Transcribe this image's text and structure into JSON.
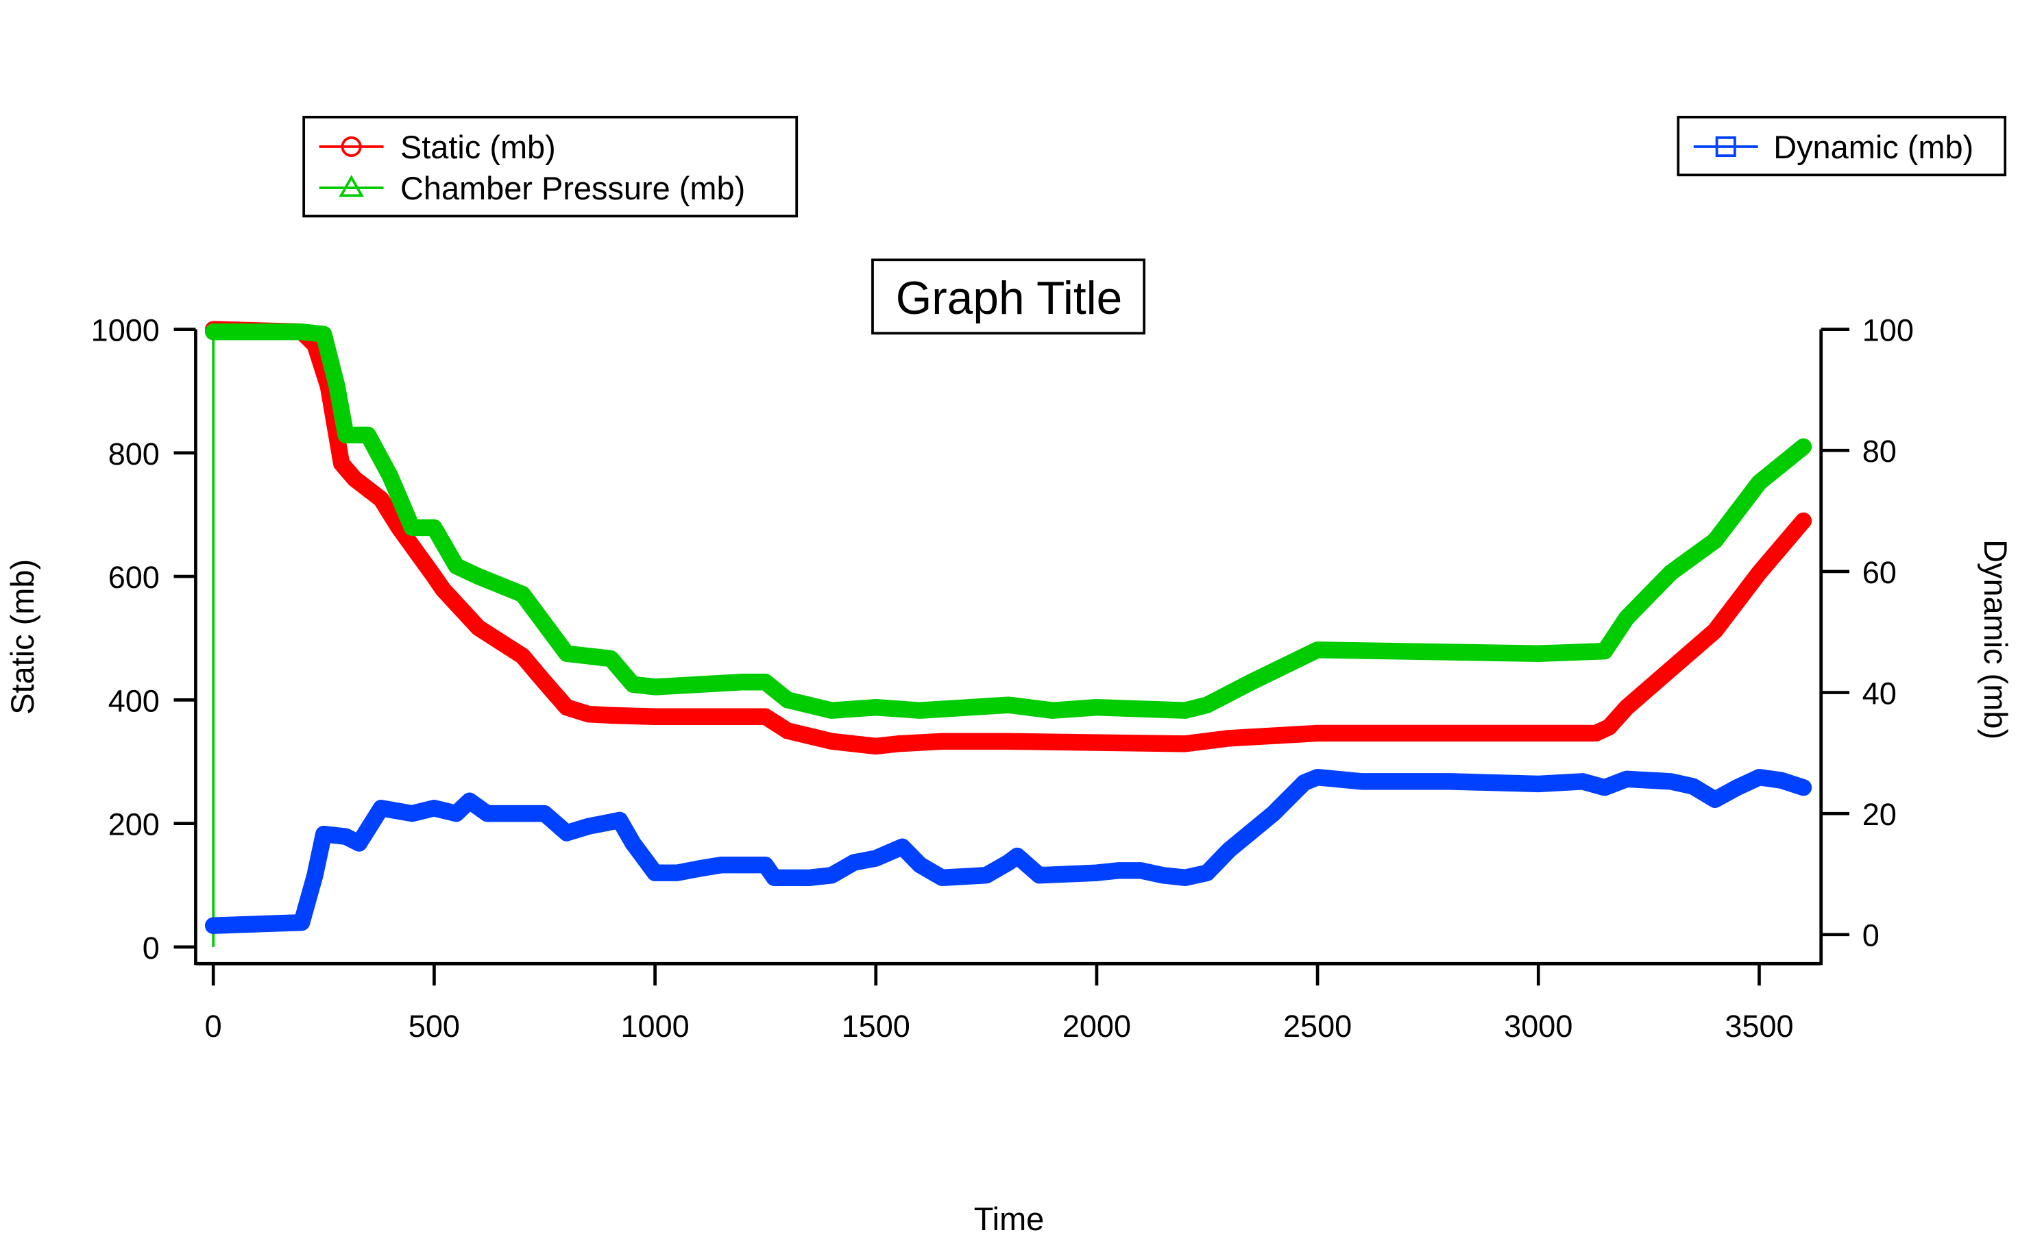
{
  "chart_data": {
    "type": "line",
    "title": "Graph Title",
    "xlabel": "Time",
    "ylabel_left": "Static (mb)",
    "ylabel_right": "Dynamic (mb)",
    "xlim": [
      -40,
      3640
    ],
    "ylim_left": [
      -27,
      1000
    ],
    "ylim_right": [
      -4.8,
      100
    ],
    "grid": false,
    "x_ticks": [
      "0",
      "500",
      "1000",
      "1500",
      "2000",
      "2500",
      "3000",
      "3500"
    ],
    "y_left_ticks": [
      "0",
      "200",
      "400",
      "600",
      "800",
      "1000"
    ],
    "y_right_ticks": [
      "0",
      "20",
      "40",
      "60",
      "80",
      "100"
    ],
    "legends": [
      {
        "placement": "top-left",
        "entries": [
          "Static (mb)",
          "Chamber Pressure (mb)"
        ]
      },
      {
        "placement": "top-right",
        "entries": [
          "Dynamic (mb)"
        ]
      }
    ],
    "series": [
      {
        "name": "Static (mb)",
        "axis": "left",
        "color": "#ff0000",
        "marker": "circle",
        "x": [
          0,
          200,
          230,
          260,
          290,
          320,
          380,
          420,
          500,
          520,
          600,
          700,
          750,
          800,
          850,
          900,
          1000,
          1250,
          1300,
          1400,
          1500,
          1550,
          1650,
          1800,
          2200,
          2300,
          2500,
          3000,
          3130,
          3160,
          3200,
          3300,
          3400,
          3500,
          3600
        ],
        "y": [
          1000,
          996,
          975,
          908,
          783,
          758,
          725,
          679,
          600,
          579,
          517,
          471,
          429,
          388,
          377,
          375,
          373,
          373,
          350,
          333,
          325,
          329,
          333,
          333,
          329,
          338,
          346,
          346,
          346,
          356,
          388,
          450,
          512,
          606,
          690
        ]
      },
      {
        "name": "Chamber Pressure (mb)",
        "axis": "left",
        "color": "#00cc00",
        "marker": "triangle",
        "x": [
          0,
          200,
          250,
          280,
          300,
          350,
          400,
          450,
          500,
          550,
          600,
          700,
          800,
          900,
          950,
          1000,
          1200,
          1250,
          1300,
          1400,
          1500,
          1600,
          1800,
          1900,
          2000,
          2200,
          2250,
          2350,
          2500,
          3000,
          3150,
          3200,
          3300,
          3400,
          3500,
          3600
        ],
        "y": [
          996,
          996,
          992,
          908,
          829,
          829,
          763,
          679,
          679,
          617,
          600,
          571,
          475,
          467,
          425,
          421,
          429,
          429,
          400,
          383,
          388,
          383,
          392,
          383,
          388,
          383,
          392,
          429,
          481,
          475,
          479,
          533,
          606,
          658,
          752,
          810
        ]
      },
      {
        "name": "Dynamic (mb)",
        "axis": "right",
        "color": "#0040ff",
        "marker": "square",
        "x": [
          0,
          200,
          230,
          250,
          300,
          330,
          380,
          450,
          500,
          550,
          580,
          620,
          700,
          750,
          800,
          850,
          920,
          950,
          1000,
          1050,
          1100,
          1150,
          1250,
          1270,
          1350,
          1400,
          1450,
          1500,
          1560,
          1600,
          1650,
          1750,
          1800,
          1820,
          1870,
          2000,
          2050,
          2100,
          2150,
          2200,
          2250,
          2300,
          2400,
          2470,
          2500,
          2600,
          2800,
          3000,
          3100,
          3150,
          3200,
          3300,
          3350,
          3400,
          3450,
          3500,
          3550,
          3600
        ],
        "y": [
          1.5,
          2,
          9.8,
          16.6,
          16.2,
          15.1,
          20.9,
          20,
          20.9,
          20,
          22.1,
          20,
          20,
          20,
          16.8,
          17.9,
          18.9,
          15.1,
          10.2,
          10.2,
          10.9,
          11.5,
          11.5,
          9.4,
          9.4,
          9.8,
          11.9,
          12.6,
          14.5,
          11.5,
          9.4,
          9.8,
          11.9,
          13,
          9.8,
          10.2,
          10.6,
          10.6,
          9.8,
          9.4,
          10.2,
          14,
          20,
          25.1,
          26,
          25.3,
          25.3,
          24.9,
          25.3,
          24.3,
          25.7,
          25.3,
          24.5,
          22.3,
          24.3,
          26,
          25.5,
          24.3
        ]
      }
    ]
  }
}
